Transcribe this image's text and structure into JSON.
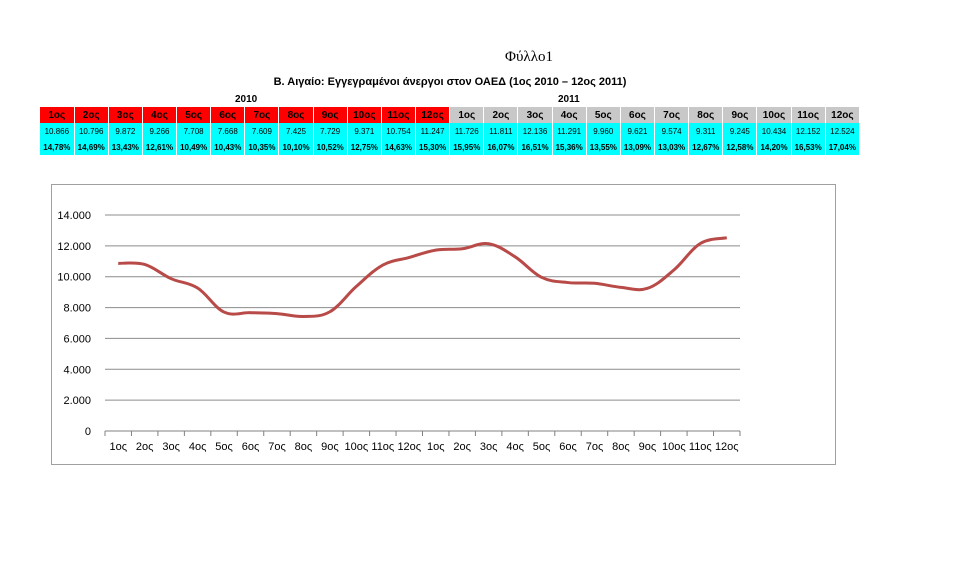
{
  "sheet_title": "Φύλλο1",
  "table": {
    "title": "Β. Αιγαίο: Εγγεγραμένοι άνεργοι στον ΟΑΕΔ (1ος 2010 – 12ος 2011)",
    "year_2010": "2010",
    "year_2011": "2011",
    "months": [
      "1ος",
      "2ος",
      "3ος",
      "4ος",
      "5ος",
      "6ος",
      "7ος",
      "8ος",
      "9ος",
      "10ος",
      "11ος",
      "12ος",
      "1ος",
      "2ος",
      "3ος",
      "4ος",
      "5ος",
      "6ος",
      "7ος",
      "8ος",
      "9ος",
      "10ος",
      "11ος",
      "12ος"
    ],
    "values_text": [
      "10.866",
      "10.796",
      "9.872",
      "9.266",
      "7.708",
      "7.668",
      "7.609",
      "7.425",
      "7.729",
      "9.371",
      "10.754",
      "11.247",
      "11.726",
      "11.811",
      "12.136",
      "11.291",
      "9.960",
      "9.621",
      "9.574",
      "9.311",
      "9.245",
      "10.434",
      "12.152",
      "12.524"
    ],
    "percentages": [
      "14,78%",
      "14,69%",
      "13,43%",
      "12,61%",
      "10,49%",
      "10,43%",
      "10,35%",
      "10,10%",
      "10,52%",
      "12,75%",
      "14,63%",
      "15,30%",
      "15,95%",
      "16,07%",
      "16,51%",
      "15,36%",
      "13,55%",
      "13,09%",
      "13,03%",
      "12,67%",
      "12,58%",
      "14,20%",
      "16,53%",
      "17,04%"
    ],
    "colors": {
      "header_2010": "#ff0000",
      "header_2011": "#c8c8c8",
      "data_rows": "#00ffff"
    }
  },
  "chart_data": {
    "type": "line",
    "categories": [
      "1ος",
      "2ος",
      "3ος",
      "4ος",
      "5ος",
      "6ος",
      "7ος",
      "8ος",
      "9ος",
      "10ος",
      "11ος",
      "12ος",
      "1ος",
      "2ος",
      "3ος",
      "4ος",
      "5ος",
      "6ος",
      "7ος",
      "8ος",
      "9ος",
      "10ος",
      "11ος",
      "12ος"
    ],
    "series": [
      {
        "values": [
          10866,
          10796,
          9872,
          9266,
          7708,
          7668,
          7609,
          7425,
          7729,
          9371,
          10754,
          11247,
          11726,
          11811,
          12136,
          11291,
          9960,
          9621,
          9574,
          9311,
          9245,
          10434,
          12152,
          12524
        ],
        "color": "#b84a48"
      }
    ],
    "ylim": [
      0,
      14000
    ],
    "yticks": [
      0,
      2000,
      4000,
      6000,
      8000,
      10000,
      12000,
      14000
    ],
    "ytick_labels": [
      "0",
      "2.000",
      "4.000",
      "6.000",
      "8.000",
      "10.000",
      "12.000",
      "14.000"
    ],
    "grid": true,
    "legend": "none"
  }
}
